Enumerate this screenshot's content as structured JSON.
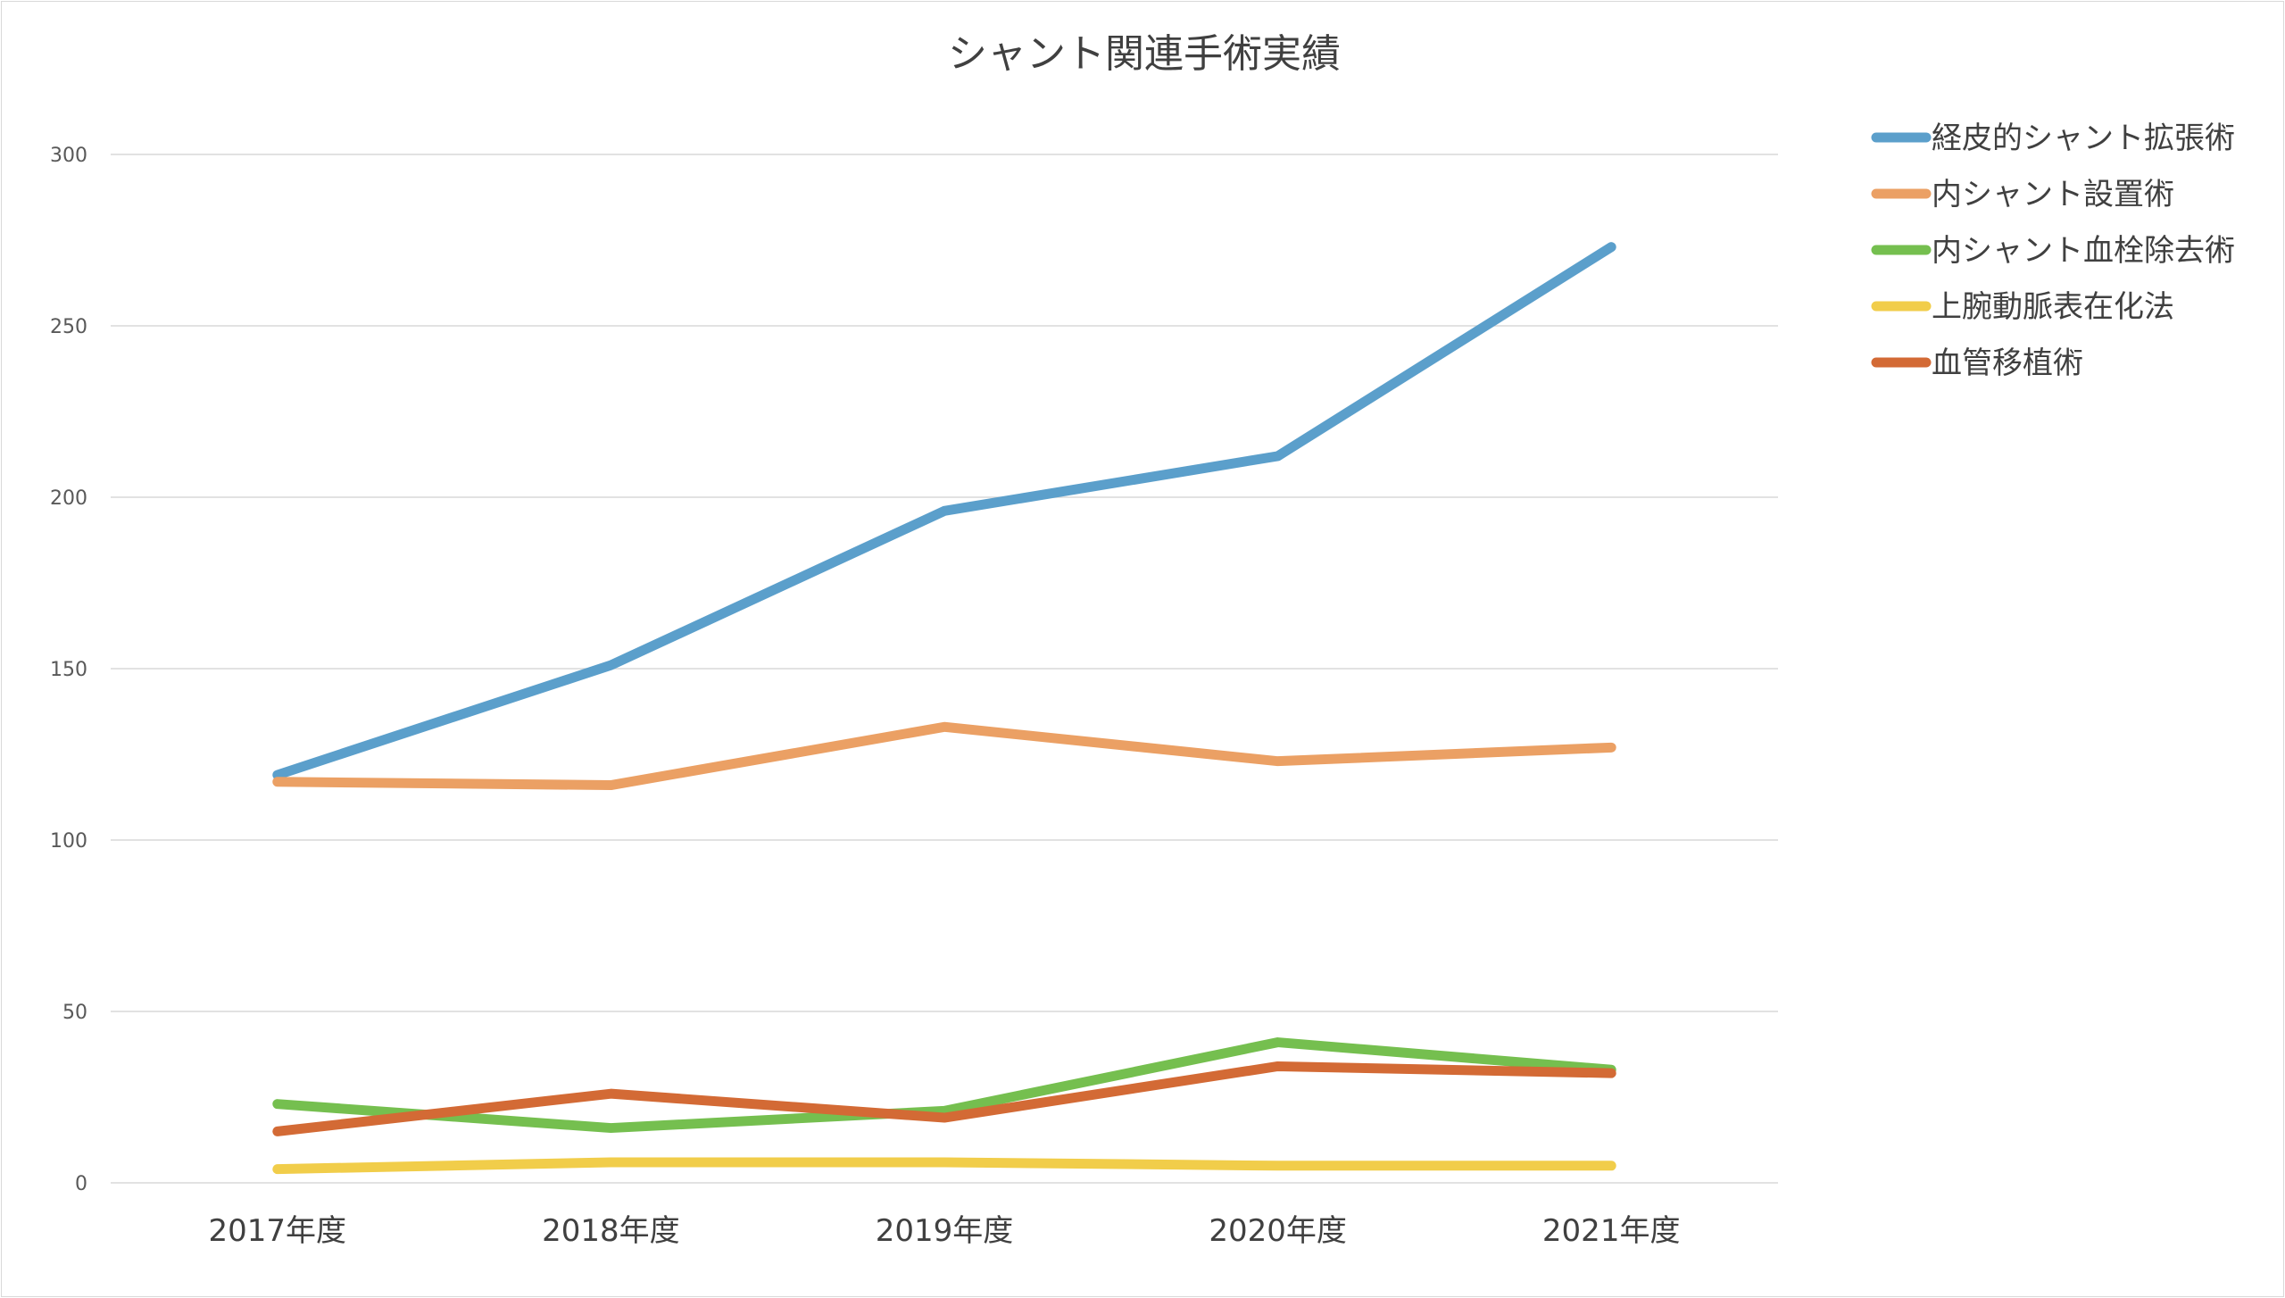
{
  "chart_data": {
    "type": "line",
    "title": "シャント関連手術実績",
    "categories": [
      "2017年度",
      "2018年度",
      "2019年度",
      "2020年度",
      "2021年度"
    ],
    "ylim": [
      0,
      300
    ],
    "yticks": [
      0,
      50,
      100,
      150,
      200,
      250,
      300
    ],
    "grid": true,
    "legend_position": "right",
    "series": [
      {
        "name": "経皮的シャント拡張術",
        "color": "#5b9fcb",
        "values": [
          119,
          151,
          196,
          212,
          273
        ]
      },
      {
        "name": "内シャント設置術",
        "color": "#eba064",
        "values": [
          117,
          116,
          133,
          123,
          127
        ]
      },
      {
        "name": "内シャント血栓除去術",
        "color": "#75bf4f",
        "values": [
          23,
          16,
          21,
          41,
          33
        ]
      },
      {
        "name": "上腕動脈表在化法",
        "color": "#f1cd4a",
        "values": [
          4,
          6,
          6,
          5,
          5
        ]
      },
      {
        "name": "血管移植術",
        "color": "#d36a35",
        "values": [
          15,
          26,
          19,
          34,
          32
        ]
      }
    ]
  }
}
